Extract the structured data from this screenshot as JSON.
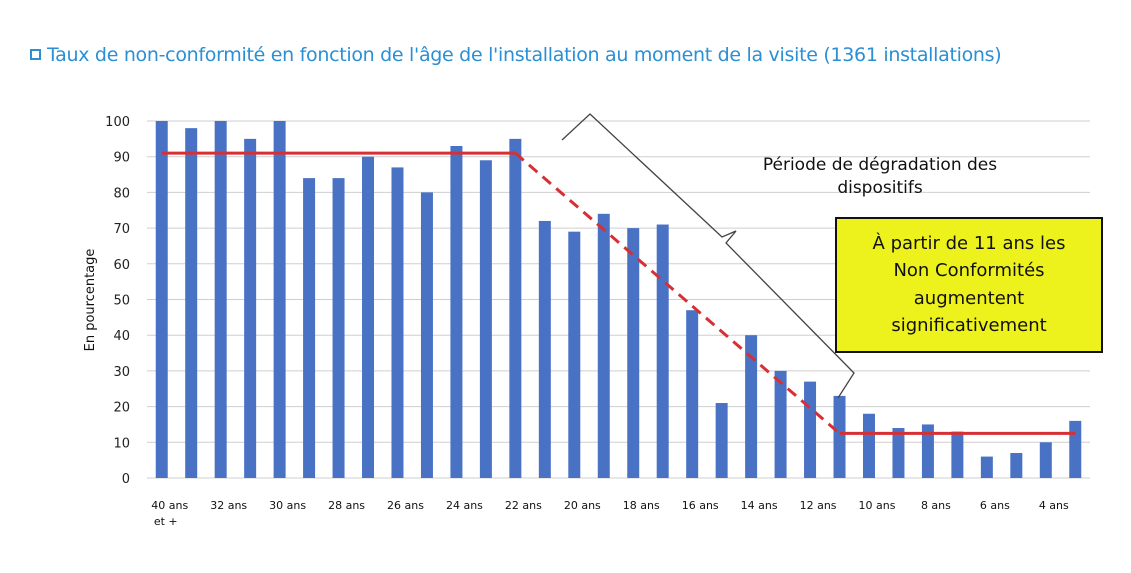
{
  "title": "Taux de non-conformité en fonction de l'âge de l'installation au moment de la visite (1361 installations)",
  "colors": {
    "title": "#2a8fd4",
    "bar": "#4a72c4",
    "threshold": "#d62f34",
    "callout_fill": "#eef21c",
    "grid": "#cfcfcf"
  },
  "chart_data": {
    "type": "bar",
    "ylabel": "En pourcentage",
    "ylim": [
      0,
      100
    ],
    "yticks": [
      0,
      10,
      20,
      30,
      40,
      50,
      60,
      70,
      80,
      90,
      100
    ],
    "grid": true,
    "categories": [
      "40 ans et +",
      "",
      "32 ans",
      "",
      "30 ans",
      "",
      "28 ans",
      "",
      "26 ans",
      "",
      "24 ans",
      "",
      "22 ans",
      "",
      "20 ans",
      "",
      "18 ans",
      "",
      "16 ans",
      "",
      "14 ans",
      "",
      "12 ans",
      "",
      "10 ans",
      "",
      "8 ans",
      "",
      "6 ans",
      "",
      "4 ans",
      ""
    ],
    "tick_labels": [
      "40 ans",
      "32 ans",
      "30 ans",
      "28 ans",
      "26 ans",
      "24 ans",
      "22 ans",
      "20 ans",
      "18 ans",
      "16 ans",
      "14 ans",
      "12 ans",
      "10 ans",
      "8 ans",
      "6 ans",
      "4 ans"
    ],
    "tick_label_extra": "et +",
    "values": [
      100,
      98,
      100,
      95,
      100,
      84,
      84,
      90,
      87,
      80,
      93,
      89,
      95,
      72,
      69,
      74,
      70,
      71,
      47,
      21,
      40,
      30,
      27,
      23,
      18,
      14,
      15,
      13,
      6,
      7,
      10,
      16
    ],
    "trend_lines": [
      {
        "style": "solid",
        "points": [
          [
            0,
            91
          ],
          [
            12,
            91
          ]
        ]
      },
      {
        "style": "dashed",
        "points": [
          [
            12,
            91
          ],
          [
            23,
            12.5
          ]
        ]
      },
      {
        "style": "solid",
        "points": [
          [
            23,
            12.5
          ],
          [
            31,
            12.5
          ]
        ]
      }
    ],
    "annotations": {
      "brace_label": [
        "Période de dégradation des",
        "dispositifs"
      ],
      "callout": [
        "À partir de 11 ans les",
        "Non Conformités",
        "augmentent",
        "significativement"
      ]
    }
  }
}
